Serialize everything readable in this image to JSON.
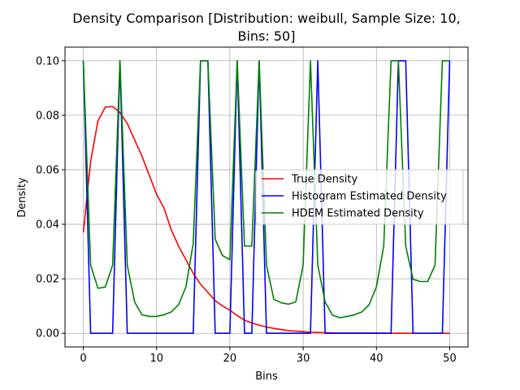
{
  "chart_data": {
    "type": "line",
    "title_line1": "Density Comparison [Distribution: weibull, Sample Size: 10,",
    "title_line2": "Bins: 50]",
    "xlabel": "Bins",
    "ylabel": "Density",
    "xlim": [
      -2.5,
      52.5
    ],
    "ylim": [
      -0.005,
      0.105
    ],
    "xticks": [
      0,
      10,
      20,
      30,
      40,
      50
    ],
    "yticks": [
      0.0,
      0.02,
      0.04,
      0.06,
      0.08,
      0.1
    ],
    "ytick_labels": [
      "0.00",
      "0.02",
      "0.04",
      "0.06",
      "0.08",
      "0.10"
    ],
    "grid": true,
    "legend_position": "center-right",
    "series": [
      {
        "name": "True Density",
        "color": "#ff0000",
        "points": [
          [
            0,
            0.037
          ],
          [
            1,
            0.063
          ],
          [
            2,
            0.078
          ],
          [
            3,
            0.083
          ],
          [
            4,
            0.0832
          ],
          [
            5,
            0.081
          ],
          [
            6,
            0.077
          ],
          [
            7,
            0.071
          ],
          [
            8,
            0.065
          ],
          [
            9,
            0.058
          ],
          [
            10,
            0.051
          ],
          [
            11,
            0.046
          ],
          [
            12,
            0.038
          ],
          [
            13,
            0.032
          ],
          [
            14,
            0.027
          ],
          [
            15,
            0.022
          ],
          [
            16,
            0.018
          ],
          [
            17,
            0.015
          ],
          [
            18,
            0.012
          ],
          [
            19,
            0.01
          ],
          [
            20,
            0.0085
          ],
          [
            21,
            0.0065
          ],
          [
            22,
            0.0048
          ],
          [
            23,
            0.0038
          ],
          [
            24,
            0.003
          ],
          [
            25,
            0.0023
          ],
          [
            26,
            0.0018
          ],
          [
            27,
            0.0014
          ],
          [
            28,
            0.001
          ],
          [
            29,
            0.0008
          ],
          [
            30,
            0.0006
          ],
          [
            31,
            0.0004
          ],
          [
            32,
            0.0003
          ],
          [
            33,
            0.0002
          ],
          [
            34,
            0.00015
          ],
          [
            35,
            0.0001
          ],
          [
            36,
            0.0001
          ],
          [
            37,
            0.0001
          ],
          [
            38,
            0.0001
          ],
          [
            39,
            0.0001
          ],
          [
            40,
            0.0001
          ],
          [
            41,
            0.0001
          ],
          [
            42,
            0
          ],
          [
            43,
            0
          ],
          [
            44,
            0
          ],
          [
            45,
            0
          ],
          [
            46,
            0
          ],
          [
            47,
            0
          ],
          [
            48,
            0
          ],
          [
            49,
            0
          ],
          [
            50,
            0
          ]
        ]
      },
      {
        "name": "Histogram Estimated Density",
        "color": "#0000ff",
        "points": [
          [
            0,
            0.1
          ],
          [
            1,
            0
          ],
          [
            4,
            0
          ],
          [
            5,
            0.1
          ],
          [
            6,
            0
          ],
          [
            15,
            0
          ],
          [
            16,
            0.1
          ],
          [
            17,
            0.1
          ],
          [
            18,
            0
          ],
          [
            20,
            0
          ],
          [
            21,
            0.1
          ],
          [
            22,
            0
          ],
          [
            23,
            0
          ],
          [
            24,
            0.1
          ],
          [
            25,
            0
          ],
          [
            31,
            0
          ],
          [
            32,
            0.1
          ],
          [
            33,
            0
          ],
          [
            42,
            0
          ],
          [
            43,
            0.1
          ],
          [
            44,
            0.1
          ],
          [
            45,
            0
          ],
          [
            49,
            0
          ],
          [
            50,
            0.1
          ]
        ]
      },
      {
        "name": "HDEM Estimated Density",
        "color": "#008000",
        "points": [
          [
            0,
            0.1
          ],
          [
            1,
            0.025
          ],
          [
            2,
            0.0165
          ],
          [
            3,
            0.017
          ],
          [
            4,
            0.025
          ],
          [
            5,
            0.1
          ],
          [
            6,
            0.025
          ],
          [
            7,
            0.0115
          ],
          [
            8,
            0.0068
          ],
          [
            9,
            0.0062
          ],
          [
            10,
            0.0062
          ],
          [
            11,
            0.0068
          ],
          [
            12,
            0.0078
          ],
          [
            13,
            0.0105
          ],
          [
            14,
            0.017
          ],
          [
            15,
            0.033
          ],
          [
            16,
            0.1
          ],
          [
            17,
            0.1
          ],
          [
            18,
            0.0345
          ],
          [
            19,
            0.0285
          ],
          [
            20,
            0.027
          ],
          [
            21,
            0.1
          ],
          [
            22,
            0.032
          ],
          [
            23,
            0.032
          ],
          [
            24,
            0.1
          ],
          [
            25,
            0.025
          ],
          [
            26,
            0.0125
          ],
          [
            27,
            0.0112
          ],
          [
            28,
            0.0107
          ],
          [
            29,
            0.0115
          ],
          [
            30,
            0.025
          ],
          [
            31,
            0.1
          ],
          [
            32,
            0.025
          ],
          [
            33,
            0.0115
          ],
          [
            34,
            0.0067
          ],
          [
            35,
            0.0057
          ],
          [
            36,
            0.0062
          ],
          [
            37,
            0.0068
          ],
          [
            38,
            0.0078
          ],
          [
            39,
            0.0105
          ],
          [
            40,
            0.017
          ],
          [
            41,
            0.032
          ],
          [
            42,
            0.1
          ],
          [
            43,
            0.1
          ],
          [
            44,
            0.032
          ],
          [
            45,
            0.0198
          ],
          [
            46,
            0.019
          ],
          [
            47,
            0.019
          ],
          [
            48,
            0.025
          ],
          [
            49,
            0.1
          ],
          [
            50,
            0.1
          ]
        ]
      }
    ]
  }
}
